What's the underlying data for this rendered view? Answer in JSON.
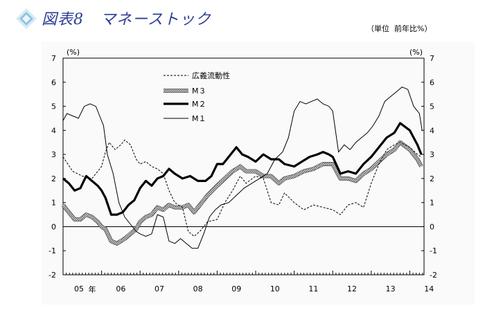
{
  "figure": {
    "label": "図表8",
    "title": "マネーストック",
    "unit_note": "（単位  前年比%）"
  },
  "colors": {
    "title": "#2c3f95",
    "icon": "#8fc3df",
    "axis": "#000000",
    "m3": "#a9a9a9"
  },
  "chart_data": {
    "type": "line",
    "x_unit": "year (fiscal, 2005-2014)",
    "xlim": [
      2005.0,
      2014.37
    ],
    "ylim": [
      -2,
      7
    ],
    "yticks": [
      -2,
      -1,
      0,
      1,
      2,
      3,
      4,
      5,
      6,
      7
    ],
    "y_unit_left": "(%)",
    "y_unit_right": "(%)",
    "xticklabels": [
      "05",
      "06",
      "07",
      "08",
      "09",
      "10",
      "11",
      "12",
      "13",
      "14"
    ],
    "year_suffix": "年",
    "grid": false,
    "zero_line": true,
    "legend_position": "top-left (inside plot)",
    "series": [
      {
        "name": "広義流動性",
        "style": "dashed",
        "x": [
          2005.0,
          2005.25,
          2005.5,
          2005.75,
          2006.0,
          2006.1,
          2006.2,
          2006.35,
          2006.5,
          2006.6,
          2006.75,
          2006.9,
          2007.0,
          2007.15,
          2007.3,
          2007.45,
          2007.6,
          2007.75,
          2007.9,
          2008.1,
          2008.25,
          2008.4,
          2008.55,
          2008.75,
          2009.0,
          2009.2,
          2009.4,
          2009.6,
          2009.75,
          2010.0,
          2010.2,
          2010.4,
          2010.6,
          2010.75,
          2011.0,
          2011.25,
          2011.5,
          2011.75,
          2012.0,
          2012.2,
          2012.4,
          2012.6,
          2012.8,
          2013.0,
          2013.2,
          2013.4,
          2013.6,
          2013.75,
          2014.0,
          2014.2,
          2014.3
        ],
        "values": [
          2.9,
          2.3,
          2.1,
          2.0,
          2.5,
          3.1,
          3.5,
          3.2,
          3.4,
          3.6,
          3.4,
          2.8,
          2.6,
          2.7,
          2.5,
          2.4,
          2.2,
          1.5,
          1.0,
          0.8,
          -0.2,
          -0.4,
          -0.2,
          0.2,
          0.3,
          1.0,
          1.5,
          2.1,
          1.8,
          2.1,
          2.0,
          1.0,
          0.9,
          1.4,
          1.0,
          0.7,
          0.9,
          0.8,
          0.7,
          0.5,
          0.9,
          1.0,
          0.8,
          1.8,
          2.6,
          3.2,
          3.4,
          3.5,
          3.3,
          3.0,
          2.9
        ]
      },
      {
        "name": "M３",
        "style": "hatched",
        "x": [
          2005.0,
          2005.15,
          2005.3,
          2005.45,
          2005.6,
          2005.75,
          2005.9,
          2006.0,
          2006.1,
          2006.25,
          2006.4,
          2006.6,
          2006.75,
          2006.9,
          2007.0,
          2007.15,
          2007.3,
          2007.45,
          2007.6,
          2007.75,
          2007.9,
          2008.1,
          2008.25,
          2008.4,
          2008.6,
          2008.75,
          2009.0,
          2009.2,
          2009.4,
          2009.6,
          2009.75,
          2010.0,
          2010.2,
          2010.4,
          2010.6,
          2010.75,
          2011.0,
          2011.25,
          2011.5,
          2011.75,
          2011.9,
          2012.0,
          2012.2,
          2012.4,
          2012.6,
          2012.8,
          2013.0,
          2013.2,
          2013.4,
          2013.6,
          2013.75,
          2014.0,
          2014.2,
          2014.3
        ],
        "values": [
          0.9,
          0.6,
          0.3,
          0.3,
          0.5,
          0.4,
          0.2,
          0.0,
          -0.1,
          -0.6,
          -0.7,
          -0.5,
          -0.3,
          -0.1,
          0.2,
          0.4,
          0.5,
          0.8,
          0.7,
          0.9,
          0.8,
          0.8,
          0.9,
          0.6,
          1.0,
          1.3,
          1.7,
          2.0,
          2.3,
          2.5,
          2.3,
          2.3,
          2.1,
          2.1,
          1.8,
          2.0,
          2.1,
          2.3,
          2.4,
          2.6,
          2.6,
          2.6,
          2.0,
          2.0,
          1.9,
          2.2,
          2.4,
          2.7,
          3.0,
          3.2,
          3.5,
          3.2,
          2.8,
          2.5
        ]
      },
      {
        "name": "M２",
        "style": "bold",
        "x": [
          2005.0,
          2005.15,
          2005.3,
          2005.45,
          2005.6,
          2005.75,
          2005.9,
          2006.0,
          2006.1,
          2006.25,
          2006.4,
          2006.55,
          2006.7,
          2006.85,
          2007.0,
          2007.15,
          2007.3,
          2007.45,
          2007.6,
          2007.75,
          2007.9,
          2008.1,
          2008.3,
          2008.5,
          2008.7,
          2008.85,
          2009.0,
          2009.15,
          2009.3,
          2009.5,
          2009.65,
          2009.8,
          2010.0,
          2010.2,
          2010.4,
          2010.6,
          2010.75,
          2011.0,
          2011.2,
          2011.4,
          2011.6,
          2011.75,
          2011.9,
          2012.0,
          2012.2,
          2012.4,
          2012.6,
          2012.8,
          2013.0,
          2013.2,
          2013.4,
          2013.6,
          2013.75,
          2014.0,
          2014.2,
          2014.3
        ],
        "values": [
          2.0,
          1.8,
          1.5,
          1.6,
          2.1,
          1.9,
          1.7,
          1.5,
          1.2,
          0.5,
          0.5,
          0.6,
          0.9,
          1.1,
          1.6,
          1.9,
          1.7,
          2.0,
          2.1,
          2.4,
          2.2,
          2.0,
          2.1,
          1.9,
          1.9,
          2.1,
          2.6,
          2.6,
          2.9,
          3.3,
          3.0,
          2.9,
          2.7,
          3.0,
          2.8,
          2.8,
          2.6,
          2.5,
          2.7,
          2.9,
          3.0,
          3.1,
          3.0,
          2.9,
          2.2,
          2.3,
          2.2,
          2.6,
          2.9,
          3.3,
          3.7,
          3.9,
          4.3,
          4.0,
          3.4,
          3.0
        ]
      },
      {
        "name": "M１",
        "style": "thin",
        "x": [
          2005.0,
          2005.1,
          2005.25,
          2005.4,
          2005.55,
          2005.7,
          2005.85,
          2005.95,
          2006.05,
          2006.15,
          2006.3,
          2006.45,
          2006.6,
          2006.75,
          2006.9,
          2007.0,
          2007.15,
          2007.3,
          2007.45,
          2007.6,
          2007.75,
          2007.9,
          2008.05,
          2008.2,
          2008.35,
          2008.5,
          2008.65,
          2008.8,
          2008.95,
          2009.1,
          2009.3,
          2009.5,
          2009.7,
          2009.9,
          2010.1,
          2010.3,
          2010.5,
          2010.7,
          2010.85,
          2011.0,
          2011.15,
          2011.3,
          2011.45,
          2011.6,
          2011.75,
          2011.9,
          2012.0,
          2012.15,
          2012.3,
          2012.45,
          2012.6,
          2012.75,
          2012.9,
          2013.05,
          2013.2,
          2013.35,
          2013.5,
          2013.65,
          2013.8,
          2013.95,
          2014.1,
          2014.25,
          2014.32
        ],
        "values": [
          4.4,
          4.7,
          4.6,
          4.5,
          5.0,
          5.1,
          5.0,
          4.6,
          4.2,
          3.0,
          2.2,
          1.0,
          0.4,
          0.1,
          -0.2,
          -0.3,
          -0.4,
          -0.3,
          0.5,
          0.4,
          -0.6,
          -0.7,
          -0.5,
          -0.7,
          -0.9,
          -0.9,
          -0.3,
          0.4,
          0.7,
          0.9,
          1.0,
          1.3,
          1.6,
          1.8,
          2.0,
          2.2,
          2.8,
          3.1,
          3.7,
          4.8,
          5.2,
          5.1,
          5.2,
          5.3,
          5.1,
          5.0,
          4.8,
          3.1,
          3.4,
          3.2,
          3.5,
          3.7,
          3.9,
          4.2,
          4.6,
          5.2,
          5.4,
          5.6,
          5.8,
          5.7,
          5.0,
          4.7,
          4.0
        ]
      }
    ]
  }
}
